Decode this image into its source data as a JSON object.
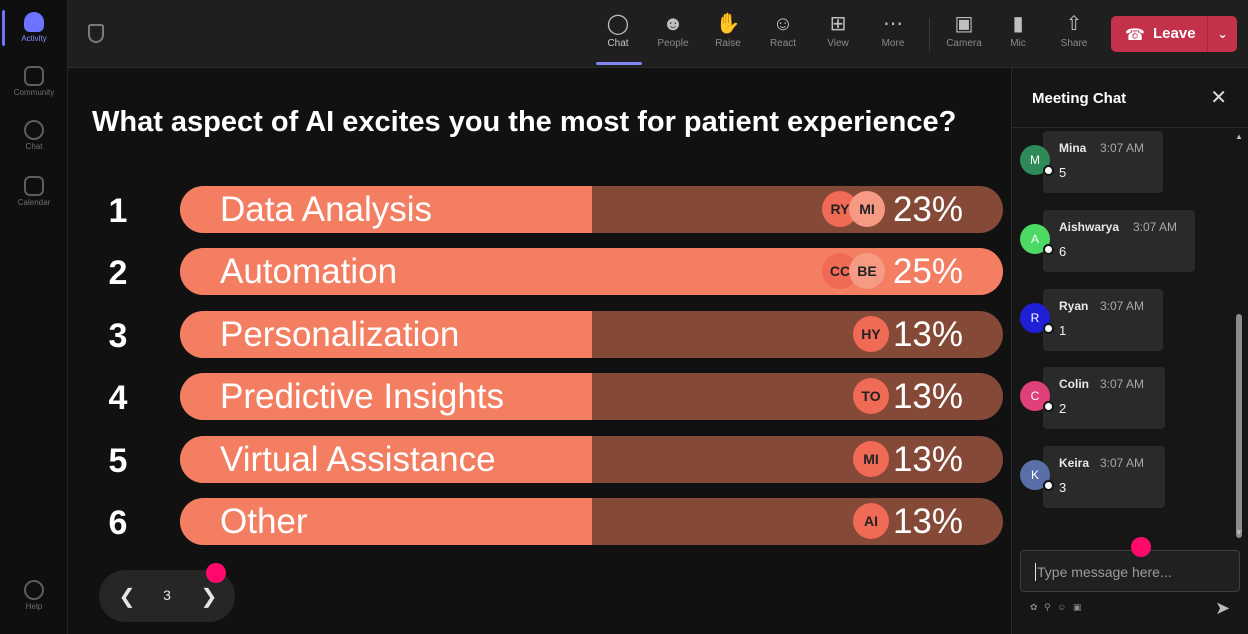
{
  "rail": [
    {
      "label": "Activity",
      "icon": "bell-icon"
    },
    {
      "label": "Community",
      "icon": "community-icon"
    },
    {
      "label": "Chat",
      "icon": "chat-icon"
    },
    {
      "label": "Calendar",
      "icon": "calendar-icon"
    },
    {
      "label": "Help",
      "icon": "help-icon"
    }
  ],
  "toolbar": {
    "chat": "Chat",
    "people": "People",
    "raise": "Raise",
    "react": "React",
    "view": "View",
    "more": "More",
    "camera": "Camera",
    "mic": "Mic",
    "share": "Share",
    "leave": "Leave"
  },
  "poll": {
    "question": "What aspect of AI excites you the most for patient experience?",
    "options": [
      {
        "num": "1",
        "label": "Data Analysis",
        "pct": "23%",
        "share": 0.23,
        "avatars": [
          "RY",
          "MI"
        ]
      },
      {
        "num": "2",
        "label": "Automation",
        "pct": "25%",
        "share": 0.25,
        "avatars": [
          "CC",
          "BE"
        ]
      },
      {
        "num": "3",
        "label": "Personalization",
        "pct": "13%",
        "share": 0.13,
        "avatars": [
          "HY"
        ]
      },
      {
        "num": "4",
        "label": "Predictive Insights",
        "pct": "13%",
        "share": 0.13,
        "avatars": [
          "TO"
        ]
      },
      {
        "num": "5",
        "label": "Virtual Assistance",
        "pct": "13%",
        "share": 0.13,
        "avatars": [
          "MI"
        ]
      },
      {
        "num": "6",
        "label": "Other",
        "pct": "13%",
        "share": 0.13,
        "avatars": [
          "AI"
        ]
      }
    ],
    "page": "3"
  },
  "chat": {
    "title": "Meeting Chat",
    "messages": [
      {
        "initial": "M",
        "name": "Mina",
        "time": "3:07 AM",
        "text": "5",
        "color": "#2e8b57"
      },
      {
        "initial": "A",
        "name": "Aishwarya",
        "time": "3:07 AM",
        "text": "6",
        "color": "#4cd964"
      },
      {
        "initial": "R",
        "name": "Ryan",
        "time": "3:07 AM",
        "text": "1",
        "color": "#1f1fd6"
      },
      {
        "initial": "C",
        "name": "Colin",
        "time": "3:07 AM",
        "text": "2",
        "color": "#e0407a"
      },
      {
        "initial": "K",
        "name": "Keira",
        "time": "3:07 AM",
        "text": "3",
        "color": "#5a6ea8"
      }
    ],
    "placeholder": "Type message here..."
  },
  "colors": {
    "bar_fill": "#f47e62",
    "bar_track": "#854937",
    "accent": "#7f85f5",
    "leave": "#c4314b",
    "cursor_dot": "#ff0a6c"
  }
}
